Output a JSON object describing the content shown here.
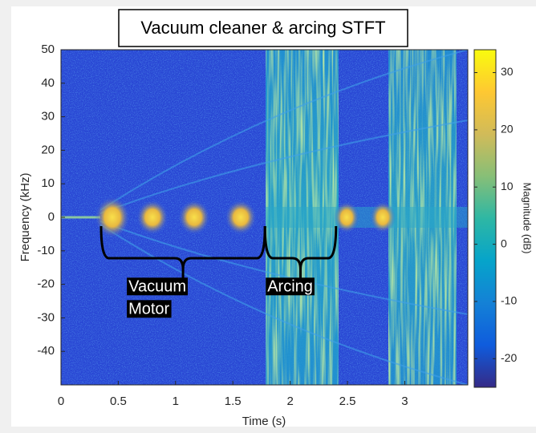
{
  "chart_data": {
    "type": "spectrogram",
    "title": "Vacuum cleaner & arcing STFT",
    "x_label": "Time (s)",
    "y_label": "Frequency (kHz)",
    "colorbar_label": "Magnitude (dB)",
    "xlim": [
      0,
      3.55
    ],
    "xticks": [
      0,
      0.5,
      1,
      1.5,
      2,
      2.5,
      3
    ],
    "ylim": [
      -50,
      50
    ],
    "yticks": [
      -40,
      -30,
      -20,
      -10,
      0,
      10,
      20,
      30,
      40,
      50
    ],
    "zlim": [
      -25,
      34
    ],
    "zticks": [
      -20,
      -10,
      0,
      10,
      20,
      30
    ],
    "colormap": [
      "#352a87",
      "#0f5cdd",
      "#1481d6",
      "#06a4ca",
      "#2eb7a4",
      "#87bf77",
      "#d1bb59",
      "#fec832",
      "#f9fb0e"
    ],
    "annotations": [
      {
        "text": [
          "Vacuum",
          "Motor"
        ],
        "x": [
          0.35,
          1.78
        ]
      },
      {
        "text": [
          "Arcing"
        ],
        "x": [
          1.78,
          2.4
        ]
      }
    ]
  }
}
